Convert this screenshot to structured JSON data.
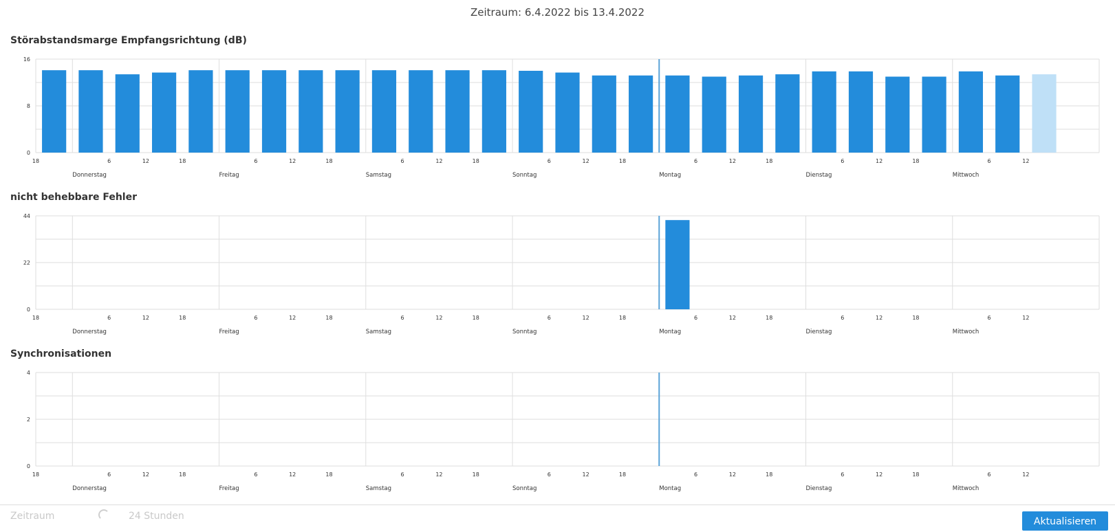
{
  "header": {
    "period": "Zeitraum: 6.4.2022 bis 13.4.2022"
  },
  "colors": {
    "bar": "#238cdb",
    "bar_current": "#bfe0f7",
    "grid": "#dedede",
    "marker": "#5aa2d8"
  },
  "chart_data": [
    {
      "type": "bar",
      "title": "Störabstandsmarge Empfangsrichtung (dB)",
      "ylim": [
        0,
        16
      ],
      "yticks": [
        "0",
        "8",
        "16"
      ],
      "x_hours": [
        18,
        24,
        30,
        36,
        42,
        48,
        54,
        60,
        66,
        72,
        78,
        84,
        90,
        96,
        102,
        108,
        114,
        120,
        126,
        132,
        138,
        144,
        150,
        156,
        162,
        168,
        174,
        180
      ],
      "values": [
        14.1,
        14.1,
        13.4,
        13.7,
        14.1,
        14.1,
        14.1,
        14.1,
        14.1,
        14.1,
        14.1,
        14.1,
        14.1,
        14.0,
        13.7,
        13.2,
        13.2,
        13.2,
        13.0,
        13.2,
        13.4,
        13.9,
        13.9,
        13.0,
        13.0,
        13.9,
        13.2,
        13.4
      ],
      "current_last": true
    },
    {
      "type": "bar",
      "title": "nicht behebbare Fehler",
      "ylim": [
        0,
        44
      ],
      "yticks": [
        "0",
        "22",
        "44"
      ],
      "x_hours": [
        120
      ],
      "values": [
        42
      ],
      "current_last": false
    },
    {
      "type": "bar",
      "title": "Synchronisationen",
      "ylim": [
        0,
        4
      ],
      "yticks": [
        "0",
        "2",
        "4"
      ],
      "x_hours": [],
      "values": [],
      "current_last": false
    }
  ],
  "axis": {
    "x_range_hours": [
      18,
      192
    ],
    "marker_hour": 120,
    "hour_labels": [
      {
        "hour": 18,
        "label": "18"
      },
      {
        "hour": 30,
        "label": "6"
      },
      {
        "hour": 36,
        "label": "12"
      },
      {
        "hour": 42,
        "label": "18"
      },
      {
        "hour": 54,
        "label": "6"
      },
      {
        "hour": 60,
        "label": "12"
      },
      {
        "hour": 66,
        "label": "18"
      },
      {
        "hour": 78,
        "label": "6"
      },
      {
        "hour": 84,
        "label": "12"
      },
      {
        "hour": 90,
        "label": "18"
      },
      {
        "hour": 102,
        "label": "6"
      },
      {
        "hour": 108,
        "label": "12"
      },
      {
        "hour": 114,
        "label": "18"
      },
      {
        "hour": 126,
        "label": "6"
      },
      {
        "hour": 132,
        "label": "12"
      },
      {
        "hour": 138,
        "label": "18"
      },
      {
        "hour": 150,
        "label": "6"
      },
      {
        "hour": 156,
        "label": "12"
      },
      {
        "hour": 162,
        "label": "18"
      },
      {
        "hour": 174,
        "label": "6"
      },
      {
        "hour": 180,
        "label": "12"
      }
    ],
    "days": [
      {
        "hour": 24,
        "label": "Donnerstag"
      },
      {
        "hour": 48,
        "label": "Freitag"
      },
      {
        "hour": 72,
        "label": "Samstag"
      },
      {
        "hour": 96,
        "label": "Sonntag"
      },
      {
        "hour": 120,
        "label": "Montag"
      },
      {
        "hour": 144,
        "label": "Dienstag"
      },
      {
        "hour": 168,
        "label": "Mittwoch"
      }
    ]
  },
  "footer": {
    "period_label": "Zeitraum",
    "period_value": "24 Stunden",
    "refresh_label": "Aktualisieren"
  }
}
